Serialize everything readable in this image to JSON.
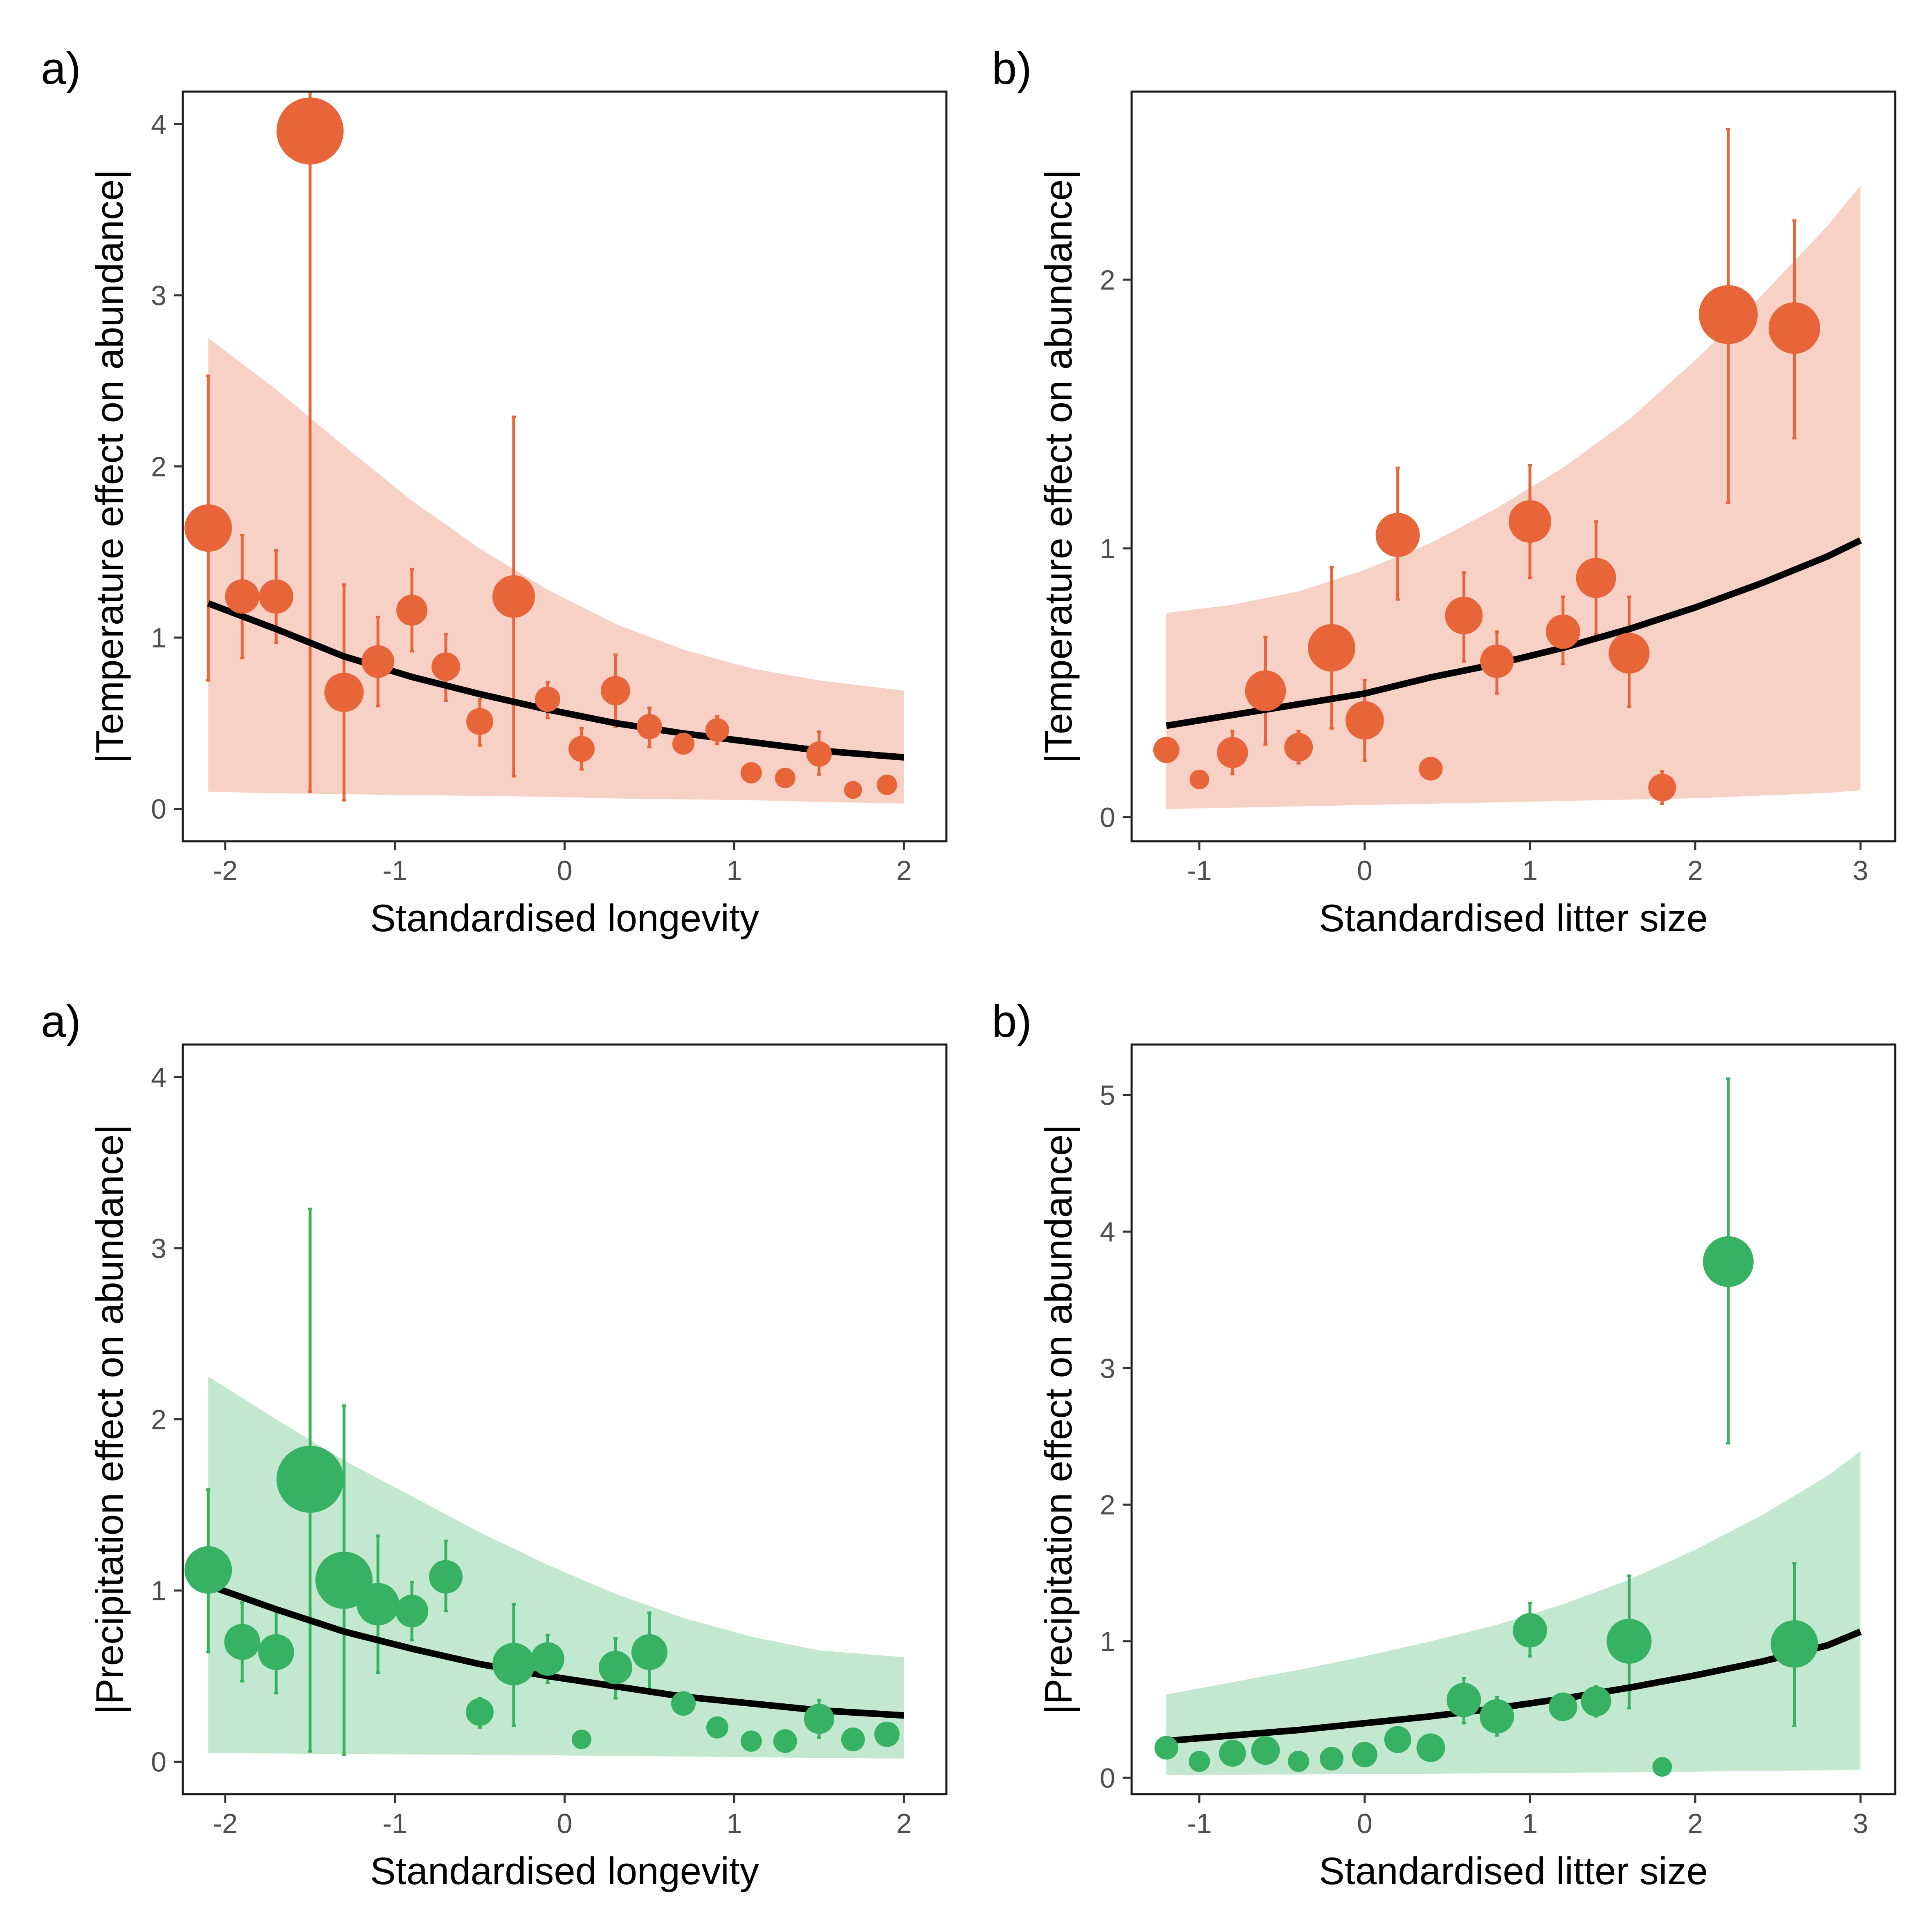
{
  "colors": {
    "temperature": "#E8653A",
    "temperature_band": "#F7D1C6",
    "precipitation": "#37B263",
    "precipitation_band": "#C2E8CF",
    "fit": "#000000"
  },
  "chart_data": [
    {
      "type": "scatter",
      "panel_label": "a)",
      "xlabel": "Standardised longevity",
      "ylabel": "|Temperature effect on abundance|",
      "xlim": [
        -2.25,
        2.25
      ],
      "ylim": [
        -0.19,
        4.19
      ],
      "xticks": [
        -2,
        -1,
        0,
        1,
        2
      ],
      "xtick_labels": [
        "-2",
        "-1",
        "0",
        "1",
        "2"
      ],
      "yticks": [
        0,
        1,
        2,
        3,
        4
      ],
      "ytick_labels": [
        "0",
        "1",
        "2",
        "3",
        "4"
      ],
      "color_key": "temperature",
      "band_key": "temperature_band",
      "points": [
        {
          "x": -2.1,
          "y": 1.64,
          "lo": 0.75,
          "hi": 2.53,
          "size": 58
        },
        {
          "x": -1.9,
          "y": 1.24,
          "lo": 0.88,
          "hi": 1.6,
          "size": 42
        },
        {
          "x": -1.7,
          "y": 1.24,
          "lo": 0.97,
          "hi": 1.51,
          "size": 42
        },
        {
          "x": -1.5,
          "y": 3.96,
          "lo": 0.1,
          "hi": 4.19,
          "size": 82
        },
        {
          "x": -1.3,
          "y": 0.68,
          "lo": 0.05,
          "hi": 1.31,
          "size": 48
        },
        {
          "x": -1.1,
          "y": 0.86,
          "lo": 0.6,
          "hi": 1.12,
          "size": 40
        },
        {
          "x": -0.9,
          "y": 1.16,
          "lo": 0.92,
          "hi": 1.4,
          "size": 38
        },
        {
          "x": -0.7,
          "y": 0.83,
          "lo": 0.63,
          "hi": 1.02,
          "size": 35
        },
        {
          "x": -0.5,
          "y": 0.51,
          "lo": 0.37,
          "hi": 0.64,
          "size": 33
        },
        {
          "x": -0.3,
          "y": 1.24,
          "lo": 0.19,
          "hi": 2.29,
          "size": 52
        },
        {
          "x": -0.1,
          "y": 0.64,
          "lo": 0.53,
          "hi": 0.74,
          "size": 31
        },
        {
          "x": 0.1,
          "y": 0.35,
          "lo": 0.23,
          "hi": 0.47,
          "size": 32
        },
        {
          "x": 0.3,
          "y": 0.69,
          "lo": 0.48,
          "hi": 0.9,
          "size": 36
        },
        {
          "x": 0.5,
          "y": 0.48,
          "lo": 0.36,
          "hi": 0.59,
          "size": 31
        },
        {
          "x": 0.7,
          "y": 0.38,
          "lo": 0.33,
          "hi": 0.43,
          "size": 27
        },
        {
          "x": 0.9,
          "y": 0.46,
          "lo": 0.38,
          "hi": 0.54,
          "size": 29
        },
        {
          "x": 1.1,
          "y": 0.21,
          "lo": 0.18,
          "hi": 0.24,
          "size": 26
        },
        {
          "x": 1.3,
          "y": 0.18,
          "lo": 0.16,
          "hi": 0.2,
          "size": 25
        },
        {
          "x": 1.5,
          "y": 0.32,
          "lo": 0.2,
          "hi": 0.45,
          "size": 31
        },
        {
          "x": 1.7,
          "y": 0.11,
          "lo": 0.1,
          "hi": 0.12,
          "size": 22
        },
        {
          "x": 1.9,
          "y": 0.14,
          "lo": 0.12,
          "hi": 0.16,
          "size": 25
        }
      ],
      "fit": {
        "x": [
          -2.1,
          -1.7,
          -1.3,
          -0.9,
          -0.5,
          -0.1,
          0.3,
          0.7,
          1.1,
          1.5,
          2.0
        ],
        "y": [
          1.2,
          1.05,
          0.89,
          0.77,
          0.67,
          0.58,
          0.5,
          0.44,
          0.39,
          0.34,
          0.3
        ],
        "lo": [
          0.1,
          0.09,
          0.085,
          0.08,
          0.075,
          0.07,
          0.06,
          0.055,
          0.05,
          0.04,
          0.03
        ],
        "hi": [
          2.75,
          2.45,
          2.12,
          1.8,
          1.52,
          1.28,
          1.08,
          0.93,
          0.82,
          0.75,
          0.69
        ]
      }
    },
    {
      "type": "scatter",
      "panel_label": "b)",
      "xlabel": "Standardised litter size",
      "ylabel": "|Temperature effect on abundance|",
      "xlim": [
        -1.41,
        3.21
      ],
      "ylim": [
        -0.09,
        2.7
      ],
      "xticks": [
        -1,
        0,
        1,
        2,
        3
      ],
      "xtick_labels": [
        "-1",
        "0",
        "1",
        "2",
        "3"
      ],
      "yticks": [
        0,
        1,
        2
      ],
      "ytick_labels": [
        "0",
        "1",
        "2"
      ],
      "color_key": "temperature",
      "band_key": "temperature_band",
      "points": [
        {
          "x": -1.2,
          "y": 0.25,
          "lo": 0.25,
          "hi": 0.25,
          "size": 32
        },
        {
          "x": -1.0,
          "y": 0.14,
          "lo": 0.14,
          "hi": 0.14,
          "size": 24
        },
        {
          "x": -0.8,
          "y": 0.24,
          "lo": 0.16,
          "hi": 0.32,
          "size": 38
        },
        {
          "x": -0.6,
          "y": 0.47,
          "lo": 0.27,
          "hi": 0.67,
          "size": 50
        },
        {
          "x": -0.4,
          "y": 0.26,
          "lo": 0.2,
          "hi": 0.32,
          "size": 35
        },
        {
          "x": -0.2,
          "y": 0.63,
          "lo": 0.33,
          "hi": 0.93,
          "size": 58
        },
        {
          "x": 0.0,
          "y": 0.36,
          "lo": 0.21,
          "hi": 0.51,
          "size": 47
        },
        {
          "x": 0.2,
          "y": 1.05,
          "lo": 0.81,
          "hi": 1.3,
          "size": 54
        },
        {
          "x": 0.4,
          "y": 0.18,
          "lo": 0.18,
          "hi": 0.18,
          "size": 29
        },
        {
          "x": 0.6,
          "y": 0.75,
          "lo": 0.58,
          "hi": 0.91,
          "size": 46
        },
        {
          "x": 0.8,
          "y": 0.58,
          "lo": 0.46,
          "hi": 0.69,
          "size": 41
        },
        {
          "x": 1.0,
          "y": 1.1,
          "lo": 0.89,
          "hi": 1.31,
          "size": 52
        },
        {
          "x": 1.2,
          "y": 0.69,
          "lo": 0.57,
          "hi": 0.82,
          "size": 42
        },
        {
          "x": 1.4,
          "y": 0.89,
          "lo": 0.68,
          "hi": 1.1,
          "size": 49
        },
        {
          "x": 1.6,
          "y": 0.61,
          "lo": 0.41,
          "hi": 0.82,
          "size": 50
        },
        {
          "x": 1.8,
          "y": 0.11,
          "lo": 0.05,
          "hi": 0.17,
          "size": 34
        },
        {
          "x": 2.2,
          "y": 1.87,
          "lo": 1.17,
          "hi": 2.56,
          "size": 72
        },
        {
          "x": 2.6,
          "y": 1.82,
          "lo": 1.41,
          "hi": 2.22,
          "size": 63
        }
      ],
      "fit": {
        "x": [
          -1.2,
          -0.8,
          -0.4,
          0.0,
          0.4,
          0.8,
          1.2,
          1.6,
          2.0,
          2.4,
          2.8,
          3.0
        ],
        "y": [
          0.34,
          0.38,
          0.42,
          0.46,
          0.52,
          0.57,
          0.63,
          0.7,
          0.78,
          0.87,
          0.97,
          1.03
        ],
        "lo": [
          0.03,
          0.035,
          0.04,
          0.045,
          0.05,
          0.055,
          0.06,
          0.065,
          0.07,
          0.08,
          0.09,
          0.1
        ],
        "hi": [
          0.76,
          0.79,
          0.84,
          0.92,
          1.02,
          1.15,
          1.3,
          1.48,
          1.7,
          1.94,
          2.2,
          2.35
        ]
      }
    },
    {
      "type": "scatter",
      "panel_label": "a)",
      "xlabel": "Standardised longevity",
      "ylabel": "|Precipitation effect on abundance|",
      "xlim": [
        -2.25,
        2.25
      ],
      "ylim": [
        -0.19,
        4.19
      ],
      "xticks": [
        -2,
        -1,
        0,
        1,
        2
      ],
      "xtick_labels": [
        "-2",
        "-1",
        "0",
        "1",
        "2"
      ],
      "yticks": [
        0,
        1,
        2,
        3,
        4
      ],
      "ytick_labels": [
        "0",
        "1",
        "2",
        "3",
        "4"
      ],
      "color_key": "precipitation",
      "band_key": "precipitation_band",
      "points": [
        {
          "x": -2.1,
          "y": 1.12,
          "lo": 0.64,
          "hi": 1.59,
          "size": 58
        },
        {
          "x": -1.9,
          "y": 0.7,
          "lo": 0.47,
          "hi": 0.93,
          "size": 44
        },
        {
          "x": -1.7,
          "y": 0.64,
          "lo": 0.4,
          "hi": 0.88,
          "size": 44
        },
        {
          "x": -1.5,
          "y": 1.65,
          "lo": 0.06,
          "hi": 3.23,
          "size": 82
        },
        {
          "x": -1.3,
          "y": 1.06,
          "lo": 0.04,
          "hi": 2.08,
          "size": 70
        },
        {
          "x": -1.1,
          "y": 0.92,
          "lo": 0.52,
          "hi": 1.32,
          "size": 52
        },
        {
          "x": -0.9,
          "y": 0.88,
          "lo": 0.71,
          "hi": 1.05,
          "size": 40
        },
        {
          "x": -0.7,
          "y": 1.08,
          "lo": 0.88,
          "hi": 1.29,
          "size": 41
        },
        {
          "x": -0.5,
          "y": 0.29,
          "lo": 0.2,
          "hi": 0.37,
          "size": 34
        },
        {
          "x": -0.3,
          "y": 0.57,
          "lo": 0.21,
          "hi": 0.92,
          "size": 52
        },
        {
          "x": -0.1,
          "y": 0.6,
          "lo": 0.46,
          "hi": 0.74,
          "size": 41
        },
        {
          "x": 0.1,
          "y": 0.13,
          "lo": 0.13,
          "hi": 0.13,
          "size": 24
        },
        {
          "x": 0.3,
          "y": 0.55,
          "lo": 0.37,
          "hi": 0.72,
          "size": 41
        },
        {
          "x": 0.5,
          "y": 0.64,
          "lo": 0.41,
          "hi": 0.87,
          "size": 44
        },
        {
          "x": 0.7,
          "y": 0.34,
          "lo": 0.34,
          "hi": 0.34,
          "size": 30
        },
        {
          "x": 0.9,
          "y": 0.2,
          "lo": 0.2,
          "hi": 0.2,
          "size": 27
        },
        {
          "x": 1.1,
          "y": 0.12,
          "lo": 0.12,
          "hi": 0.12,
          "size": 26
        },
        {
          "x": 1.3,
          "y": 0.12,
          "lo": 0.12,
          "hi": 0.12,
          "size": 29
        },
        {
          "x": 1.5,
          "y": 0.25,
          "lo": 0.14,
          "hi": 0.36,
          "size": 37
        },
        {
          "x": 1.7,
          "y": 0.13,
          "lo": 0.13,
          "hi": 0.13,
          "size": 29
        },
        {
          "x": 1.9,
          "y": 0.16,
          "lo": 0.16,
          "hi": 0.16,
          "size": 31
        }
      ],
      "fit": {
        "x": [
          -2.1,
          -1.7,
          -1.3,
          -0.9,
          -0.5,
          -0.1,
          0.3,
          0.7,
          1.1,
          1.5,
          2.0
        ],
        "y": [
          1.03,
          0.89,
          0.76,
          0.66,
          0.57,
          0.5,
          0.44,
          0.38,
          0.34,
          0.3,
          0.27
        ],
        "lo": [
          0.05,
          0.048,
          0.045,
          0.042,
          0.04,
          0.037,
          0.034,
          0.03,
          0.026,
          0.022,
          0.018
        ],
        "hi": [
          2.25,
          2.0,
          1.76,
          1.55,
          1.34,
          1.15,
          0.98,
          0.84,
          0.73,
          0.65,
          0.61
        ]
      }
    },
    {
      "type": "scatter",
      "panel_label": "b)",
      "xlabel": "Standardised litter size",
      "ylabel": "|Precipitation effect on abundance|",
      "xlim": [
        -1.41,
        3.21
      ],
      "ylim": [
        -0.12,
        5.37
      ],
      "xticks": [
        -1,
        0,
        1,
        2,
        3
      ],
      "xtick_labels": [
        "-1",
        "0",
        "1",
        "2",
        "3"
      ],
      "yticks": [
        0,
        1,
        2,
        3,
        4,
        5
      ],
      "ytick_labels": [
        "0",
        "1",
        "2",
        "3",
        "4",
        "5"
      ],
      "color_key": "precipitation",
      "band_key": "precipitation_band",
      "points": [
        {
          "x": -1.2,
          "y": 0.22,
          "lo": 0.22,
          "hi": 0.22,
          "size": 29
        },
        {
          "x": -1.0,
          "y": 0.12,
          "lo": 0.12,
          "hi": 0.12,
          "size": 26
        },
        {
          "x": -0.8,
          "y": 0.18,
          "lo": 0.18,
          "hi": 0.18,
          "size": 33
        },
        {
          "x": -0.6,
          "y": 0.2,
          "lo": 0.2,
          "hi": 0.2,
          "size": 35
        },
        {
          "x": -0.4,
          "y": 0.12,
          "lo": 0.12,
          "hi": 0.12,
          "size": 26
        },
        {
          "x": -0.2,
          "y": 0.14,
          "lo": 0.14,
          "hi": 0.14,
          "size": 29
        },
        {
          "x": 0.0,
          "y": 0.17,
          "lo": 0.17,
          "hi": 0.17,
          "size": 31
        },
        {
          "x": 0.2,
          "y": 0.28,
          "lo": 0.28,
          "hi": 0.28,
          "size": 33
        },
        {
          "x": 0.4,
          "y": 0.22,
          "lo": 0.22,
          "hi": 0.22,
          "size": 35
        },
        {
          "x": 0.6,
          "y": 0.57,
          "lo": 0.4,
          "hi": 0.73,
          "size": 42
        },
        {
          "x": 0.8,
          "y": 0.45,
          "lo": 0.31,
          "hi": 0.59,
          "size": 42
        },
        {
          "x": 1.0,
          "y": 1.08,
          "lo": 0.89,
          "hi": 1.28,
          "size": 42
        },
        {
          "x": 1.2,
          "y": 0.52,
          "lo": 0.52,
          "hi": 0.52,
          "size": 35
        },
        {
          "x": 1.4,
          "y": 0.56,
          "lo": 0.45,
          "hi": 0.67,
          "size": 37
        },
        {
          "x": 1.6,
          "y": 1.0,
          "lo": 0.51,
          "hi": 1.48,
          "size": 55
        },
        {
          "x": 1.8,
          "y": 0.08,
          "lo": 0.08,
          "hi": 0.08,
          "size": 24
        },
        {
          "x": 2.2,
          "y": 3.78,
          "lo": 2.45,
          "hi": 5.12,
          "size": 62
        },
        {
          "x": 2.6,
          "y": 0.98,
          "lo": 0.38,
          "hi": 1.57,
          "size": 58
        }
      ],
      "fit": {
        "x": [
          -1.2,
          -0.8,
          -0.4,
          0.0,
          0.4,
          0.8,
          1.2,
          1.6,
          2.0,
          2.4,
          2.8,
          3.0
        ],
        "y": [
          0.27,
          0.31,
          0.35,
          0.4,
          0.45,
          0.51,
          0.58,
          0.66,
          0.75,
          0.85,
          0.97,
          1.07
        ],
        "lo": [
          0.02,
          0.022,
          0.025,
          0.028,
          0.03,
          0.033,
          0.036,
          0.04,
          0.045,
          0.05,
          0.055,
          0.06
        ],
        "hi": [
          0.61,
          0.7,
          0.79,
          0.89,
          1.0,
          1.12,
          1.27,
          1.45,
          1.67,
          1.92,
          2.21,
          2.39
        ]
      }
    }
  ]
}
